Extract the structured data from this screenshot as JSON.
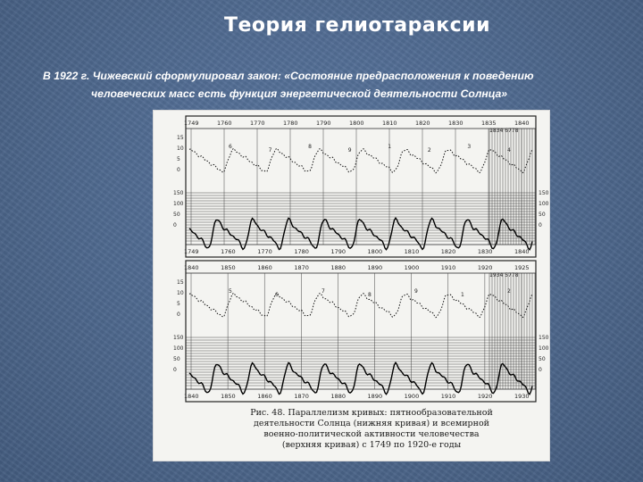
{
  "slide": {
    "title": "Теория гелиотараксии",
    "text_line1": "В 1922 г. Чижевский сформулировал закон: «Состояние предрасположения к поведению",
    "text_line2": "человеческих масс есть функция энергетической деятельности Солнца»"
  },
  "figure": {
    "caption_line1": "Рис. 48. Параллелизм кривых: пятнообразовательной",
    "caption_line2": "деятельности Солнца (нижняя кривая) и всемирной",
    "caption_line3": "военно-политической активности человечества",
    "caption_line4": "(верхняя кривая) с 1749 по 1920-е годы",
    "top_panel": {
      "upper_axis_years": [
        "1749",
        "1760",
        "1770",
        "1780",
        "1790",
        "1800",
        "1810",
        "1820",
        "1830",
        "1835",
        "1840"
      ],
      "upper_axis_extra": "1834 6778",
      "lower_axis_years": [
        "1749",
        "1760",
        "1770",
        "1780",
        "1790",
        "1800",
        "1810",
        "1820",
        "1830",
        "1840"
      ],
      "y_ticks_left_upper": [
        "15",
        "10",
        "5",
        "0"
      ],
      "y_ticks_left_lower": [
        "150",
        "100",
        "50",
        "0"
      ],
      "y_ticks_right": [
        "150",
        "100",
        "50",
        "0"
      ],
      "peak_labels": [
        "6",
        "7",
        "8",
        "9",
        "1",
        "2",
        "3",
        "4"
      ]
    },
    "bottom_panel": {
      "upper_axis_years": [
        "1840",
        "1850",
        "1860",
        "1870",
        "1880",
        "1890",
        "1900",
        "1910",
        "1920",
        "1925"
      ],
      "upper_axis_extra": "1934 5778",
      "lower_axis_years": [
        "1840",
        "1850",
        "1860",
        "1870",
        "1880",
        "1890",
        "1900",
        "1910",
        "1920",
        "1930"
      ],
      "y_ticks_left_upper": [
        "15",
        "10",
        "5",
        "0"
      ],
      "y_ticks_left_lower": [
        "150",
        "100",
        "50",
        "0"
      ],
      "y_ticks_right": [
        "150",
        "100",
        "50",
        "0"
      ],
      "peak_labels": [
        "5",
        "6",
        "7",
        "8",
        "9",
        "1",
        "2"
      ]
    }
  }
}
